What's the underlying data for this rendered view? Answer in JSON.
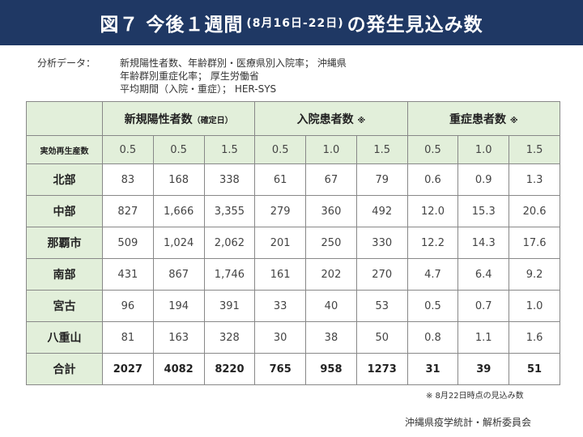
{
  "title": {
    "main": "図７ 今後１週間",
    "period": "(8月16日-22日)",
    "suffix": "の発生見込み数"
  },
  "source": {
    "label": "分析データ：",
    "lines": [
      "新規陽性者数、年齢群別・医療県別入院率； 沖縄県",
      "年齢群別重症化率； 厚生労働省",
      "平均期間（入院・重症）； HER-SYS"
    ]
  },
  "table": {
    "groups": [
      {
        "label": "新規陽性者数",
        "note": "（確定日）"
      },
      {
        "label": "入院患者数",
        "note": "※"
      },
      {
        "label": "重症患者数",
        "note": "※"
      }
    ],
    "rt_label": "実効再生産数",
    "rt_values": [
      "0.5",
      "0.5",
      "1.5",
      "0.5",
      "1.0",
      "1.5",
      "0.5",
      "1.0",
      "1.5"
    ],
    "rows": [
      {
        "label": "北部",
        "values": [
          "83",
          "168",
          "338",
          "61",
          "67",
          "79",
          "0.6",
          "0.9",
          "1.3"
        ]
      },
      {
        "label": "中部",
        "values": [
          "827",
          "1,666",
          "3,355",
          "279",
          "360",
          "492",
          "12.0",
          "15.3",
          "20.6"
        ]
      },
      {
        "label": "那覇市",
        "values": [
          "509",
          "1,024",
          "2,062",
          "201",
          "250",
          "330",
          "12.2",
          "14.3",
          "17.6"
        ]
      },
      {
        "label": "南部",
        "values": [
          "431",
          "867",
          "1,746",
          "161",
          "202",
          "270",
          "4.7",
          "6.4",
          "9.2"
        ]
      },
      {
        "label": "宮古",
        "values": [
          "96",
          "194",
          "391",
          "33",
          "40",
          "53",
          "0.5",
          "0.7",
          "1.0"
        ]
      },
      {
        "label": "八重山",
        "values": [
          "81",
          "163",
          "328",
          "30",
          "38",
          "50",
          "0.8",
          "1.1",
          "1.6"
        ]
      }
    ],
    "total": {
      "label": "合計",
      "values": [
        "2027",
        "4082",
        "8220",
        "765",
        "958",
        "1273",
        "31",
        "39",
        "51"
      ]
    }
  },
  "footnote": "※ 8月22日時点の見込み数",
  "credit": "沖縄県疫学統計・解析委員会"
}
